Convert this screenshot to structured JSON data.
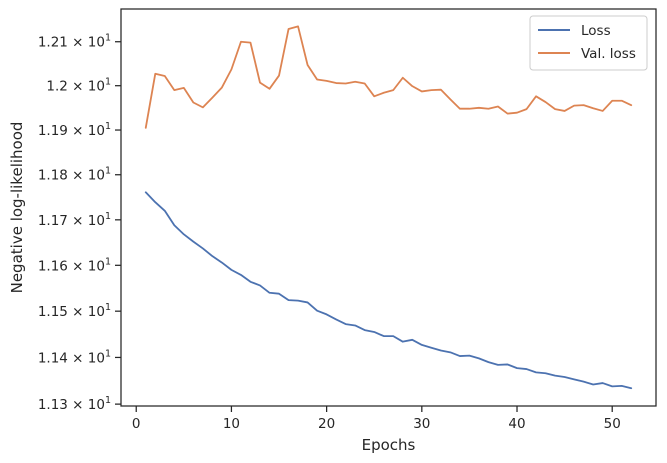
{
  "chart_data": {
    "type": "line",
    "xlabel": "Epochs",
    "ylabel": "Negative log-likelihood",
    "xlim": [
      -1.6,
      54.6
    ],
    "ylim": [
      11.296,
      12.175
    ],
    "y_scale": "log",
    "grid": false,
    "legend_position": "top-right",
    "x_ticks": [
      0,
      10,
      20,
      30,
      40,
      50
    ],
    "x_tick_labels": [
      "0",
      "10",
      "20",
      "30",
      "40",
      "50"
    ],
    "y_ticks": [
      11.3,
      11.4,
      11.5,
      11.6,
      11.7,
      11.8,
      11.9,
      12.0,
      12.1
    ],
    "y_tick_labels": [
      {
        "mantissa": "1.13",
        "times": "×",
        "base": "10",
        "exp": "1"
      },
      {
        "mantissa": "1.14",
        "times": "×",
        "base": "10",
        "exp": "1"
      },
      {
        "mantissa": "1.15",
        "times": "×",
        "base": "10",
        "exp": "1"
      },
      {
        "mantissa": "1.16",
        "times": "×",
        "base": "10",
        "exp": "1"
      },
      {
        "mantissa": "1.17",
        "times": "×",
        "base": "10",
        "exp": "1"
      },
      {
        "mantissa": "1.18",
        "times": "×",
        "base": "10",
        "exp": "1"
      },
      {
        "mantissa": "1.19",
        "times": "×",
        "base": "10",
        "exp": "1"
      },
      {
        "mantissa": "1.2",
        "times": "×",
        "base": "10",
        "exp": "1"
      },
      {
        "mantissa": "1.21",
        "times": "×",
        "base": "10",
        "exp": "1"
      }
    ],
    "x": [
      1,
      2,
      3,
      4,
      5,
      6,
      7,
      8,
      9,
      10,
      11,
      12,
      13,
      14,
      15,
      16,
      17,
      18,
      19,
      20,
      21,
      22,
      23,
      24,
      25,
      26,
      27,
      28,
      29,
      30,
      31,
      32,
      33,
      34,
      35,
      36,
      37,
      38,
      39,
      40,
      41,
      42,
      43,
      44,
      45,
      46,
      47,
      48,
      49,
      50,
      51,
      52
    ],
    "series": [
      {
        "name": "Loss",
        "color": "#4c72b0",
        "values": [
          11.761,
          11.739,
          11.72,
          11.688,
          11.668,
          11.652,
          11.637,
          11.62,
          11.606,
          11.59,
          11.579,
          11.564,
          11.556,
          11.54,
          11.538,
          11.524,
          11.523,
          11.519,
          11.501,
          11.493,
          11.482,
          11.472,
          11.469,
          11.459,
          11.455,
          11.446,
          11.446,
          11.434,
          11.438,
          11.427,
          11.421,
          11.415,
          11.411,
          11.403,
          11.404,
          11.398,
          11.39,
          11.384,
          11.385,
          11.377,
          11.375,
          11.368,
          11.366,
          11.361,
          11.358,
          11.353,
          11.348,
          11.342,
          11.345,
          11.338,
          11.339,
          11.334
        ]
      },
      {
        "name": "Val. loss",
        "color": "#dd8452",
        "values": [
          11.905,
          12.027,
          12.022,
          11.99,
          11.995,
          11.962,
          11.951,
          11.973,
          11.996,
          12.037,
          12.1,
          12.098,
          12.007,
          11.993,
          12.023,
          12.129,
          12.135,
          12.047,
          12.014,
          12.011,
          12.006,
          12.005,
          12.009,
          12.005,
          11.976,
          11.984,
          11.99,
          12.018,
          11.999,
          11.987,
          11.99,
          11.991,
          11.969,
          11.948,
          11.948,
          11.95,
          11.948,
          11.953,
          11.937,
          11.939,
          11.947,
          11.976,
          11.963,
          11.947,
          11.943,
          11.955,
          11.956,
          11.949,
          11.943,
          11.966,
          11.966,
          11.956
        ]
      }
    ]
  }
}
